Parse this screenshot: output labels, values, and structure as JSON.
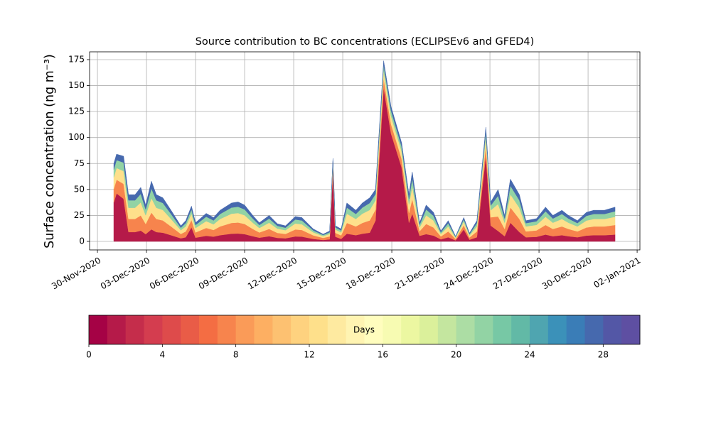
{
  "chart_data": {
    "type": "stacked-area",
    "title": "Source contribution to BC concentrations (ECLIPSEv6 and GFED4)",
    "ylabel": "Surface concentration (ng m⁻³)",
    "x": [
      1.0,
      1.17,
      1.6,
      1.9,
      2.3,
      2.65,
      2.95,
      3.3,
      3.6,
      4.0,
      4.5,
      5.1,
      5.4,
      5.75,
      6.0,
      6.65,
      7.1,
      7.5,
      8.2,
      8.6,
      9.0,
      9.5,
      9.9,
      10.5,
      11.0,
      11.5,
      12.1,
      12.5,
      13.2,
      13.8,
      14.2,
      14.4,
      14.55,
      14.9,
      15.25,
      15.8,
      16.2,
      16.65,
      17.0,
      17.5,
      17.95,
      18.6,
      19.05,
      19.25,
      19.7,
      20.1,
      20.55,
      21.0,
      21.45,
      21.9,
      22.4,
      22.75,
      23.2,
      23.75,
      24.05,
      24.5,
      24.9,
      25.25,
      25.8,
      26.2,
      26.85,
      27.4,
      27.85,
      28.4,
      28.8,
      29.35,
      29.9,
      30.35,
      31.0,
      31.65
    ],
    "series": [
      {
        "color": "#b51a49",
        "values": [
          37.5,
          46.2,
          41,
          9,
          9,
          10.4,
          7,
          11.6,
          9,
          8.4,
          6,
          3,
          4,
          13.6,
          3.6,
          5.4,
          4.6,
          6,
          7.4,
          7.6,
          7,
          5,
          3.6,
          5,
          3.4,
          3,
          4.8,
          4.6,
          2.4,
          1.4,
          2,
          68,
          4.5,
          2.4,
          7.4,
          6,
          7.4,
          8.4,
          20,
          147.9,
          104,
          71.3,
          18,
          26.8,
          5.4,
          7,
          5.6,
          2,
          4,
          1,
          11.5,
          1.6,
          4,
          82.5,
          15.2,
          10,
          5,
          18,
          9,
          4,
          4.4,
          6.6,
          5,
          6,
          5,
          4,
          5.6,
          6,
          6,
          6.6
        ]
      },
      {
        "color": "#f7844d",
        "values": [
          13.1,
          13.2,
          14.4,
          12.6,
          12.6,
          14.6,
          9.8,
          16.2,
          12.6,
          11.8,
          8.4,
          4.2,
          5.6,
          7.1,
          5,
          7.6,
          6.4,
          8.4,
          10.4,
          10.6,
          9.8,
          7,
          5,
          7,
          4.8,
          4.2,
          6.7,
          6.4,
          3.4,
          2,
          2.8,
          4.2,
          3.7,
          3.4,
          10.4,
          8.4,
          10.4,
          11.8,
          10.5,
          9.1,
          9.1,
          8.3,
          9.5,
          14.1,
          4.4,
          9.8,
          7.8,
          2.8,
          5.6,
          1.4,
          4,
          2.2,
          5.6,
          9.6,
          8,
          14,
          7,
          14.7,
          12.6,
          5.6,
          6.2,
          9.2,
          7,
          8.4,
          7,
          5.6,
          7.8,
          8.4,
          8.4,
          9.2
        ]
      },
      {
        "color": "#fee08b",
        "values": [
          11.3,
          11.3,
          12.3,
          10.8,
          10.8,
          12.5,
          8.4,
          13.9,
          10.8,
          10.1,
          7.2,
          3.6,
          4.8,
          6.1,
          4.3,
          6.5,
          5.5,
          7.2,
          8.9,
          9.1,
          8.4,
          6,
          4.3,
          6,
          4.1,
          3.6,
          5.8,
          5.5,
          2.9,
          1.7,
          2.4,
          3.6,
          3.2,
          2.9,
          8.9,
          7.2,
          8.9,
          10.1,
          9,
          7.8,
          7.8,
          7.1,
          8.1,
          12.1,
          3.8,
          8.4,
          6.7,
          2.4,
          4.8,
          1.2,
          3.5,
          1.9,
          4.8,
          8.3,
          6.8,
          12,
          6,
          12.6,
          10.8,
          4.8,
          5.3,
          7.9,
          6,
          7.2,
          6,
          4.8,
          6.7,
          7.2,
          7.2,
          7.9
        ]
      },
      {
        "color": "#92d3a4",
        "values": [
          7.5,
          7.6,
          8.2,
          7.2,
          7.2,
          8.3,
          5.6,
          9.3,
          7.2,
          6.7,
          4.8,
          2.4,
          3.2,
          4.1,
          2.9,
          4.3,
          3.7,
          4.8,
          5.9,
          6.1,
          5.6,
          4,
          2.9,
          4,
          2.7,
          2.4,
          3.8,
          3.7,
          1.9,
          1.1,
          1.6,
          2.4,
          2.1,
          1.9,
          5.9,
          4.8,
          5.9,
          6.7,
          6,
          5.2,
          5.2,
          4.7,
          5.4,
          8,
          2.5,
          5.6,
          4.5,
          1.6,
          3.2,
          0.8,
          2.3,
          1.3,
          3.2,
          5.5,
          4.6,
          8,
          4,
          8.4,
          7.2,
          3.2,
          3.5,
          5.3,
          4,
          4.8,
          4,
          3.2,
          4.5,
          4.8,
          4.8,
          5.3
        ]
      },
      {
        "color": "#4669ae",
        "values": [
          5.6,
          5.7,
          6.1,
          5.4,
          5.4,
          6.2,
          4.2,
          7,
          5.4,
          5,
          3.6,
          1.8,
          2.4,
          3.1,
          2.2,
          3.2,
          2.8,
          3.6,
          4.4,
          4.6,
          4.2,
          3,
          2.2,
          3,
          2,
          1.8,
          2.9,
          2.8,
          1.4,
          0.8,
          1.2,
          1.8,
          1.6,
          1.4,
          4.4,
          3.6,
          4.4,
          5,
          4.5,
          3.9,
          3.9,
          3.6,
          4.1,
          6,
          1.9,
          4.2,
          3.4,
          1.2,
          2.4,
          0.6,
          1.7,
          1,
          2.4,
          4.1,
          3.4,
          6,
          3,
          6.3,
          5.4,
          2.4,
          2.6,
          4,
          3,
          3.6,
          3,
          2.4,
          3.4,
          3.6,
          3.6,
          4
        ]
      }
    ],
    "xlim": [
      -0.48,
      33.17
    ],
    "xticks": [
      {
        "value": 0,
        "label": "30-Nov-2020"
      },
      {
        "value": 3,
        "label": "03-Dec-2020"
      },
      {
        "value": 6,
        "label": "06-Dec-2020"
      },
      {
        "value": 9,
        "label": "09-Dec-2020"
      },
      {
        "value": 12,
        "label": "12-Dec-2020"
      },
      {
        "value": 15,
        "label": "15-Dec-2020"
      },
      {
        "value": 18,
        "label": "18-Dec-2020"
      },
      {
        "value": 21,
        "label": "21-Dec-2020"
      },
      {
        "value": 24,
        "label": "24-Dec-2020"
      },
      {
        "value": 27,
        "label": "27-Dec-2020"
      },
      {
        "value": 30,
        "label": "30-Dec-2020"
      },
      {
        "value": 33,
        "label": "02-Jan-2021"
      }
    ],
    "ylim": [
      -8.2,
      182.5
    ],
    "yticks": [
      0,
      25,
      50,
      75,
      100,
      125,
      150,
      175
    ],
    "grid": true,
    "colorbar": {
      "label": "Days",
      "lim": [
        0,
        30
      ],
      "ticks": [
        0,
        4,
        8,
        12,
        16,
        20,
        24,
        28
      ],
      "colors": [
        "#a50245",
        "#b51a49",
        "#c52d4b",
        "#d43d4f",
        "#de4b4b",
        "#e95c47",
        "#f46d43",
        "#f7844d",
        "#fa9b58",
        "#fdaf62",
        "#fdc171",
        "#fed27f",
        "#fee08b",
        "#feeaa0",
        "#fff4b2",
        "#fffdbe",
        "#f7fbb2",
        "#ecf7a1",
        "#dbf09b",
        "#c4e69f",
        "#acdda4",
        "#92d3a4",
        "#77c8a5",
        "#62b9a6",
        "#4fa5b0",
        "#3b91b9",
        "#3a7db7",
        "#4669ae",
        "#5357a6",
        "#5e4fa2"
      ]
    }
  }
}
